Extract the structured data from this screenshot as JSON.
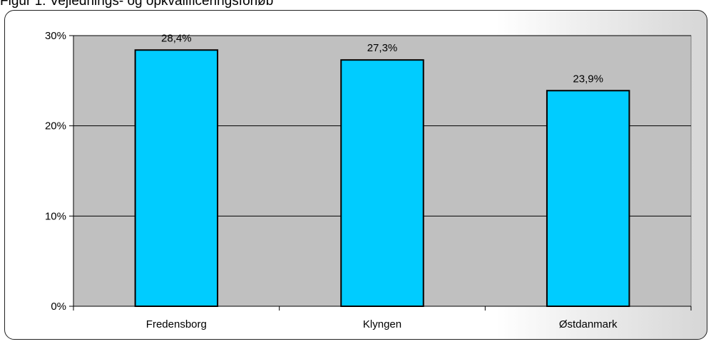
{
  "caption": "Figur 1: Vejlednings- og opkvalificeringsforløb",
  "chart_data": {
    "type": "bar",
    "categories": [
      "Fredensborg",
      "Klyngen",
      "Østdanmark"
    ],
    "values": [
      28.4,
      27.3,
      23.9
    ],
    "data_labels": [
      "28,4%",
      "27,3%",
      "23,9%"
    ],
    "title": "",
    "xlabel": "",
    "ylabel": "",
    "ylim": [
      0,
      30
    ],
    "yticks": [
      0,
      10,
      20,
      30
    ],
    "ytick_labels": [
      "0%",
      "10%",
      "20%",
      "30%"
    ],
    "grid": true,
    "legend": "none"
  },
  "colors": {
    "bar_fill": "#00CCFF",
    "bar_stroke": "#000000",
    "plot_background": "#C0C0C0",
    "gridline": "#000000"
  }
}
